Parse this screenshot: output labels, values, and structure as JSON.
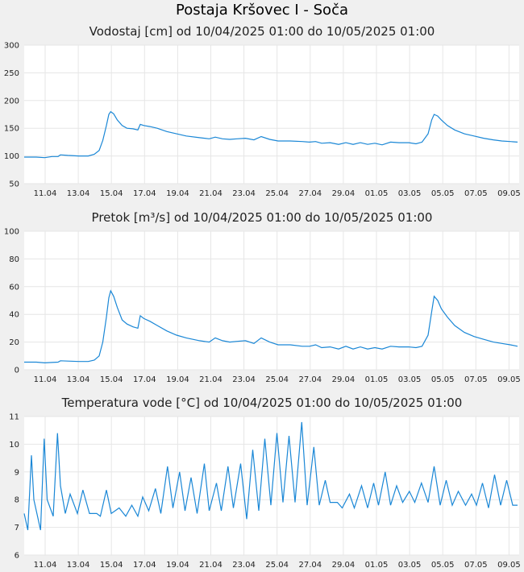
{
  "page": {
    "title": "Postaja Kršovec I - Soča"
  },
  "colors": {
    "series": "#1a87d6",
    "grid": "#e6e6e6",
    "plot_bg": "#ffffff",
    "page_bg": "#f0f0f0"
  },
  "chart_data": [
    {
      "type": "line",
      "title": "Vodostaj [cm] od 10/04/2025 01:00 do 10/05/2025 01:00",
      "ylim": [
        50,
        300
      ],
      "yticks": [
        50,
        100,
        150,
        200,
        250,
        300
      ],
      "x_range_days": [
        0,
        30
      ],
      "xtick_days": [
        1,
        3,
        5,
        7,
        9,
        11,
        13,
        15,
        17,
        19,
        21,
        23,
        25,
        27,
        29
      ],
      "xtick_labels": [
        "11.04",
        "13.04",
        "15.04",
        "17.04",
        "19.04",
        "21.04",
        "23.04",
        "25.04",
        "27.04",
        "29.04",
        "01.05",
        "03.05",
        "05.05",
        "07.05",
        "09.05"
      ],
      "grid": true,
      "series": [
        {
          "values": [
            [
              0,
              98
            ],
            [
              1,
              98
            ],
            [
              1.7,
              97
            ],
            [
              2.3,
              99
            ],
            [
              2.8,
              99
            ],
            [
              3,
              102
            ],
            [
              3.6,
              101
            ],
            [
              4.5,
              100
            ],
            [
              5.3,
              100
            ],
            [
              5.8,
              103
            ],
            [
              6.2,
              110
            ],
            [
              6.5,
              128
            ],
            [
              6.8,
              155
            ],
            [
              7,
              175
            ],
            [
              7.15,
              180
            ],
            [
              7.4,
              176
            ],
            [
              7.7,
              165
            ],
            [
              8.1,
              155
            ],
            [
              8.5,
              150
            ],
            [
              9,
              149
            ],
            [
              9.4,
              147
            ],
            [
              9.6,
              157
            ],
            [
              9.9,
              155
            ],
            [
              10.4,
              153
            ],
            [
              11,
              150
            ],
            [
              11.8,
              144
            ],
            [
              12.6,
              140
            ],
            [
              13.4,
              136
            ],
            [
              14.5,
              133
            ],
            [
              15.3,
              131
            ],
            [
              15.8,
              134
            ],
            [
              16.4,
              131
            ],
            [
              17,
              130
            ],
            [
              17.6,
              131
            ],
            [
              18.3,
              132
            ],
            [
              19,
              129
            ],
            [
              19.6,
              135
            ],
            [
              20.3,
              130
            ],
            [
              21,
              127
            ],
            [
              22,
              127
            ],
            [
              23,
              126
            ],
            [
              23.6,
              125
            ],
            [
              24.1,
              126
            ],
            [
              24.6,
              123
            ],
            [
              25.3,
              124
            ],
            [
              26,
              121
            ],
            [
              26.6,
              124
            ],
            [
              27.2,
              121
            ],
            [
              27.8,
              124
            ],
            [
              28.4,
              121
            ],
            [
              29,
              123
            ],
            [
              29.6,
              120
            ],
            [
              30.3,
              125
            ],
            [
              31,
              124
            ],
            [
              31.8,
              124
            ],
            [
              32.4,
              122
            ],
            [
              32.9,
              125
            ],
            [
              33.4,
              140
            ],
            [
              33.7,
              165
            ],
            [
              33.9,
              175
            ],
            [
              34.2,
              172
            ],
            [
              34.5,
              165
            ],
            [
              35,
              155
            ],
            [
              35.6,
              147
            ],
            [
              36.4,
              140
            ],
            [
              37.2,
              136
            ],
            [
              38,
              132
            ],
            [
              38.8,
              129
            ],
            [
              39.5,
              127
            ],
            [
              40.2,
              126
            ],
            [
              40.8,
              125
            ]
          ]
        }
      ]
    },
    {
      "type": "line",
      "title": "Pretok [m³/s] od 10/04/2025 01:00 do 10/05/2025 01:00",
      "ylim": [
        0,
        100
      ],
      "yticks": [
        0,
        20,
        40,
        60,
        80,
        100
      ],
      "x_range_days": [
        0,
        30
      ],
      "xtick_days": [
        1,
        3,
        5,
        7,
        9,
        11,
        13,
        15,
        17,
        19,
        21,
        23,
        25,
        27,
        29
      ],
      "xtick_labels": [
        "11.04",
        "13.04",
        "15.04",
        "17.04",
        "19.04",
        "21.04",
        "23.04",
        "25.04",
        "27.04",
        "29.04",
        "01.05",
        "03.05",
        "05.05",
        "07.05",
        "09.05"
      ],
      "grid": true,
      "series": [
        {
          "values": [
            [
              0,
              5.5
            ],
            [
              1,
              5.5
            ],
            [
              1.7,
              5
            ],
            [
              2.3,
              5.3
            ],
            [
              2.8,
              5.5
            ],
            [
              3,
              6.5
            ],
            [
              3.6,
              6.3
            ],
            [
              4.5,
              6
            ],
            [
              5.3,
              6
            ],
            [
              5.8,
              7
            ],
            [
              6.2,
              10
            ],
            [
              6.5,
              20
            ],
            [
              6.8,
              38
            ],
            [
              7,
              52
            ],
            [
              7.15,
              57
            ],
            [
              7.4,
              53
            ],
            [
              7.7,
              45
            ],
            [
              8.1,
              36
            ],
            [
              8.5,
              33
            ],
            [
              9,
              31
            ],
            [
              9.4,
              30
            ],
            [
              9.6,
              39
            ],
            [
              9.9,
              37
            ],
            [
              10.4,
              35
            ],
            [
              11,
              32
            ],
            [
              11.8,
              28
            ],
            [
              12.6,
              25
            ],
            [
              13.4,
              23
            ],
            [
              14.5,
              21
            ],
            [
              15.3,
              20
            ],
            [
              15.8,
              23
            ],
            [
              16.4,
              21
            ],
            [
              17,
              20
            ],
            [
              17.6,
              20.5
            ],
            [
              18.3,
              21
            ],
            [
              19,
              19
            ],
            [
              19.6,
              23
            ],
            [
              20.3,
              20
            ],
            [
              21,
              18
            ],
            [
              22,
              18
            ],
            [
              23,
              17
            ],
            [
              23.6,
              17
            ],
            [
              24.1,
              18
            ],
            [
              24.6,
              16
            ],
            [
              25.3,
              16.5
            ],
            [
              26,
              15
            ],
            [
              26.6,
              17
            ],
            [
              27.2,
              15
            ],
            [
              27.8,
              16.5
            ],
            [
              28.4,
              15
            ],
            [
              29,
              16
            ],
            [
              29.6,
              15
            ],
            [
              30.3,
              17
            ],
            [
              31,
              16.5
            ],
            [
              31.8,
              16.5
            ],
            [
              32.4,
              16
            ],
            [
              32.9,
              17
            ],
            [
              33.4,
              25
            ],
            [
              33.7,
              42
            ],
            [
              33.9,
              53
            ],
            [
              34.2,
              50
            ],
            [
              34.5,
              44
            ],
            [
              35,
              38
            ],
            [
              35.6,
              32
            ],
            [
              36.4,
              27
            ],
            [
              37.2,
              24
            ],
            [
              38,
              22
            ],
            [
              38.8,
              20
            ],
            [
              39.5,
              19
            ],
            [
              40.2,
              18
            ],
            [
              40.8,
              17
            ]
          ]
        }
      ]
    },
    {
      "type": "line",
      "title": "Temperatura vode [°C] od 10/04/2025 01:00 do 10/05/2025 01:00",
      "ylim": [
        6,
        11
      ],
      "yticks": [
        6,
        7,
        8,
        9,
        10,
        11
      ],
      "x_range_days": [
        0,
        30
      ],
      "xtick_days": [
        1,
        3,
        5,
        7,
        9,
        11,
        13,
        15,
        17,
        19,
        21,
        23,
        25,
        27,
        29
      ],
      "xtick_labels": [
        "11.04",
        "13.04",
        "15.04",
        "17.04",
        "19.04",
        "21.04",
        "23.04",
        "25.04",
        "27.04",
        "29.04",
        "01.05",
        "03.05",
        "05.05",
        "07.05",
        "09.05"
      ],
      "grid": true,
      "series": [
        {
          "values": [
            [
              0,
              7.5
            ],
            [
              0.3,
              6.9
            ],
            [
              0.6,
              9.6
            ],
            [
              0.8,
              8
            ],
            [
              1.35,
              6.9
            ],
            [
              1.65,
              10.2
            ],
            [
              1.9,
              8
            ],
            [
              2.4,
              7.4
            ],
            [
              2.75,
              10.4
            ],
            [
              3,
              8.5
            ],
            [
              3.4,
              7.5
            ],
            [
              3.8,
              8.2
            ],
            [
              4.4,
              7.5
            ],
            [
              4.85,
              8.35
            ],
            [
              5.4,
              7.5
            ],
            [
              6,
              7.5
            ],
            [
              6.3,
              7.4
            ],
            [
              6.8,
              8.35
            ],
            [
              7.2,
              7.5
            ],
            [
              7.85,
              7.7
            ],
            [
              8.4,
              7.4
            ],
            [
              8.9,
              7.8
            ],
            [
              9.4,
              7.4
            ],
            [
              9.8,
              8.1
            ],
            [
              10.3,
              7.6
            ],
            [
              10.85,
              8.4
            ],
            [
              11.3,
              7.5
            ],
            [
              11.85,
              9.2
            ],
            [
              12.3,
              7.7
            ],
            [
              12.85,
              9
            ],
            [
              13.3,
              7.6
            ],
            [
              13.8,
              8.8
            ],
            [
              14.3,
              7.5
            ],
            [
              14.9,
              9.3
            ],
            [
              15.3,
              7.6
            ],
            [
              15.9,
              8.6
            ],
            [
              16.3,
              7.6
            ],
            [
              16.85,
              9.2
            ],
            [
              17.3,
              7.7
            ],
            [
              17.9,
              9.3
            ],
            [
              18.4,
              7.3
            ],
            [
              18.9,
              9.8
            ],
            [
              19.4,
              7.6
            ],
            [
              19.9,
              10.2
            ],
            [
              20.4,
              7.8
            ],
            [
              20.9,
              10.4
            ],
            [
              21.4,
              7.9
            ],
            [
              21.9,
              10.3
            ],
            [
              22.4,
              7.9
            ],
            [
              22.95,
              10.8
            ],
            [
              23.4,
              7.8
            ],
            [
              23.95,
              9.9
            ],
            [
              24.4,
              7.8
            ],
            [
              24.9,
              8.7
            ],
            [
              25.3,
              7.9
            ],
            [
              25.9,
              7.9
            ],
            [
              26.3,
              7.7
            ],
            [
              26.9,
              8.2
            ],
            [
              27.3,
              7.7
            ],
            [
              27.9,
              8.5
            ],
            [
              28.4,
              7.7
            ],
            [
              28.9,
              8.6
            ],
            [
              29.3,
              7.8
            ],
            [
              29.85,
              9
            ],
            [
              30.3,
              7.8
            ],
            [
              30.8,
              8.5
            ],
            [
              31.3,
              7.9
            ],
            [
              31.85,
              8.3
            ],
            [
              32.3,
              7.9
            ],
            [
              32.85,
              8.6
            ],
            [
              33.4,
              7.9
            ],
            [
              33.9,
              9.2
            ],
            [
              34.4,
              7.8
            ],
            [
              34.9,
              8.7
            ],
            [
              35.4,
              7.8
            ],
            [
              35.9,
              8.3
            ],
            [
              36.5,
              7.8
            ],
            [
              37,
              8.2
            ],
            [
              37.4,
              7.8
            ],
            [
              37.9,
              8.6
            ],
            [
              38.4,
              7.7
            ],
            [
              38.9,
              8.9
            ],
            [
              39.4,
              7.8
            ],
            [
              39.9,
              8.7
            ],
            [
              40.4,
              7.8
            ],
            [
              40.8,
              7.8
            ]
          ]
        }
      ]
    }
  ]
}
